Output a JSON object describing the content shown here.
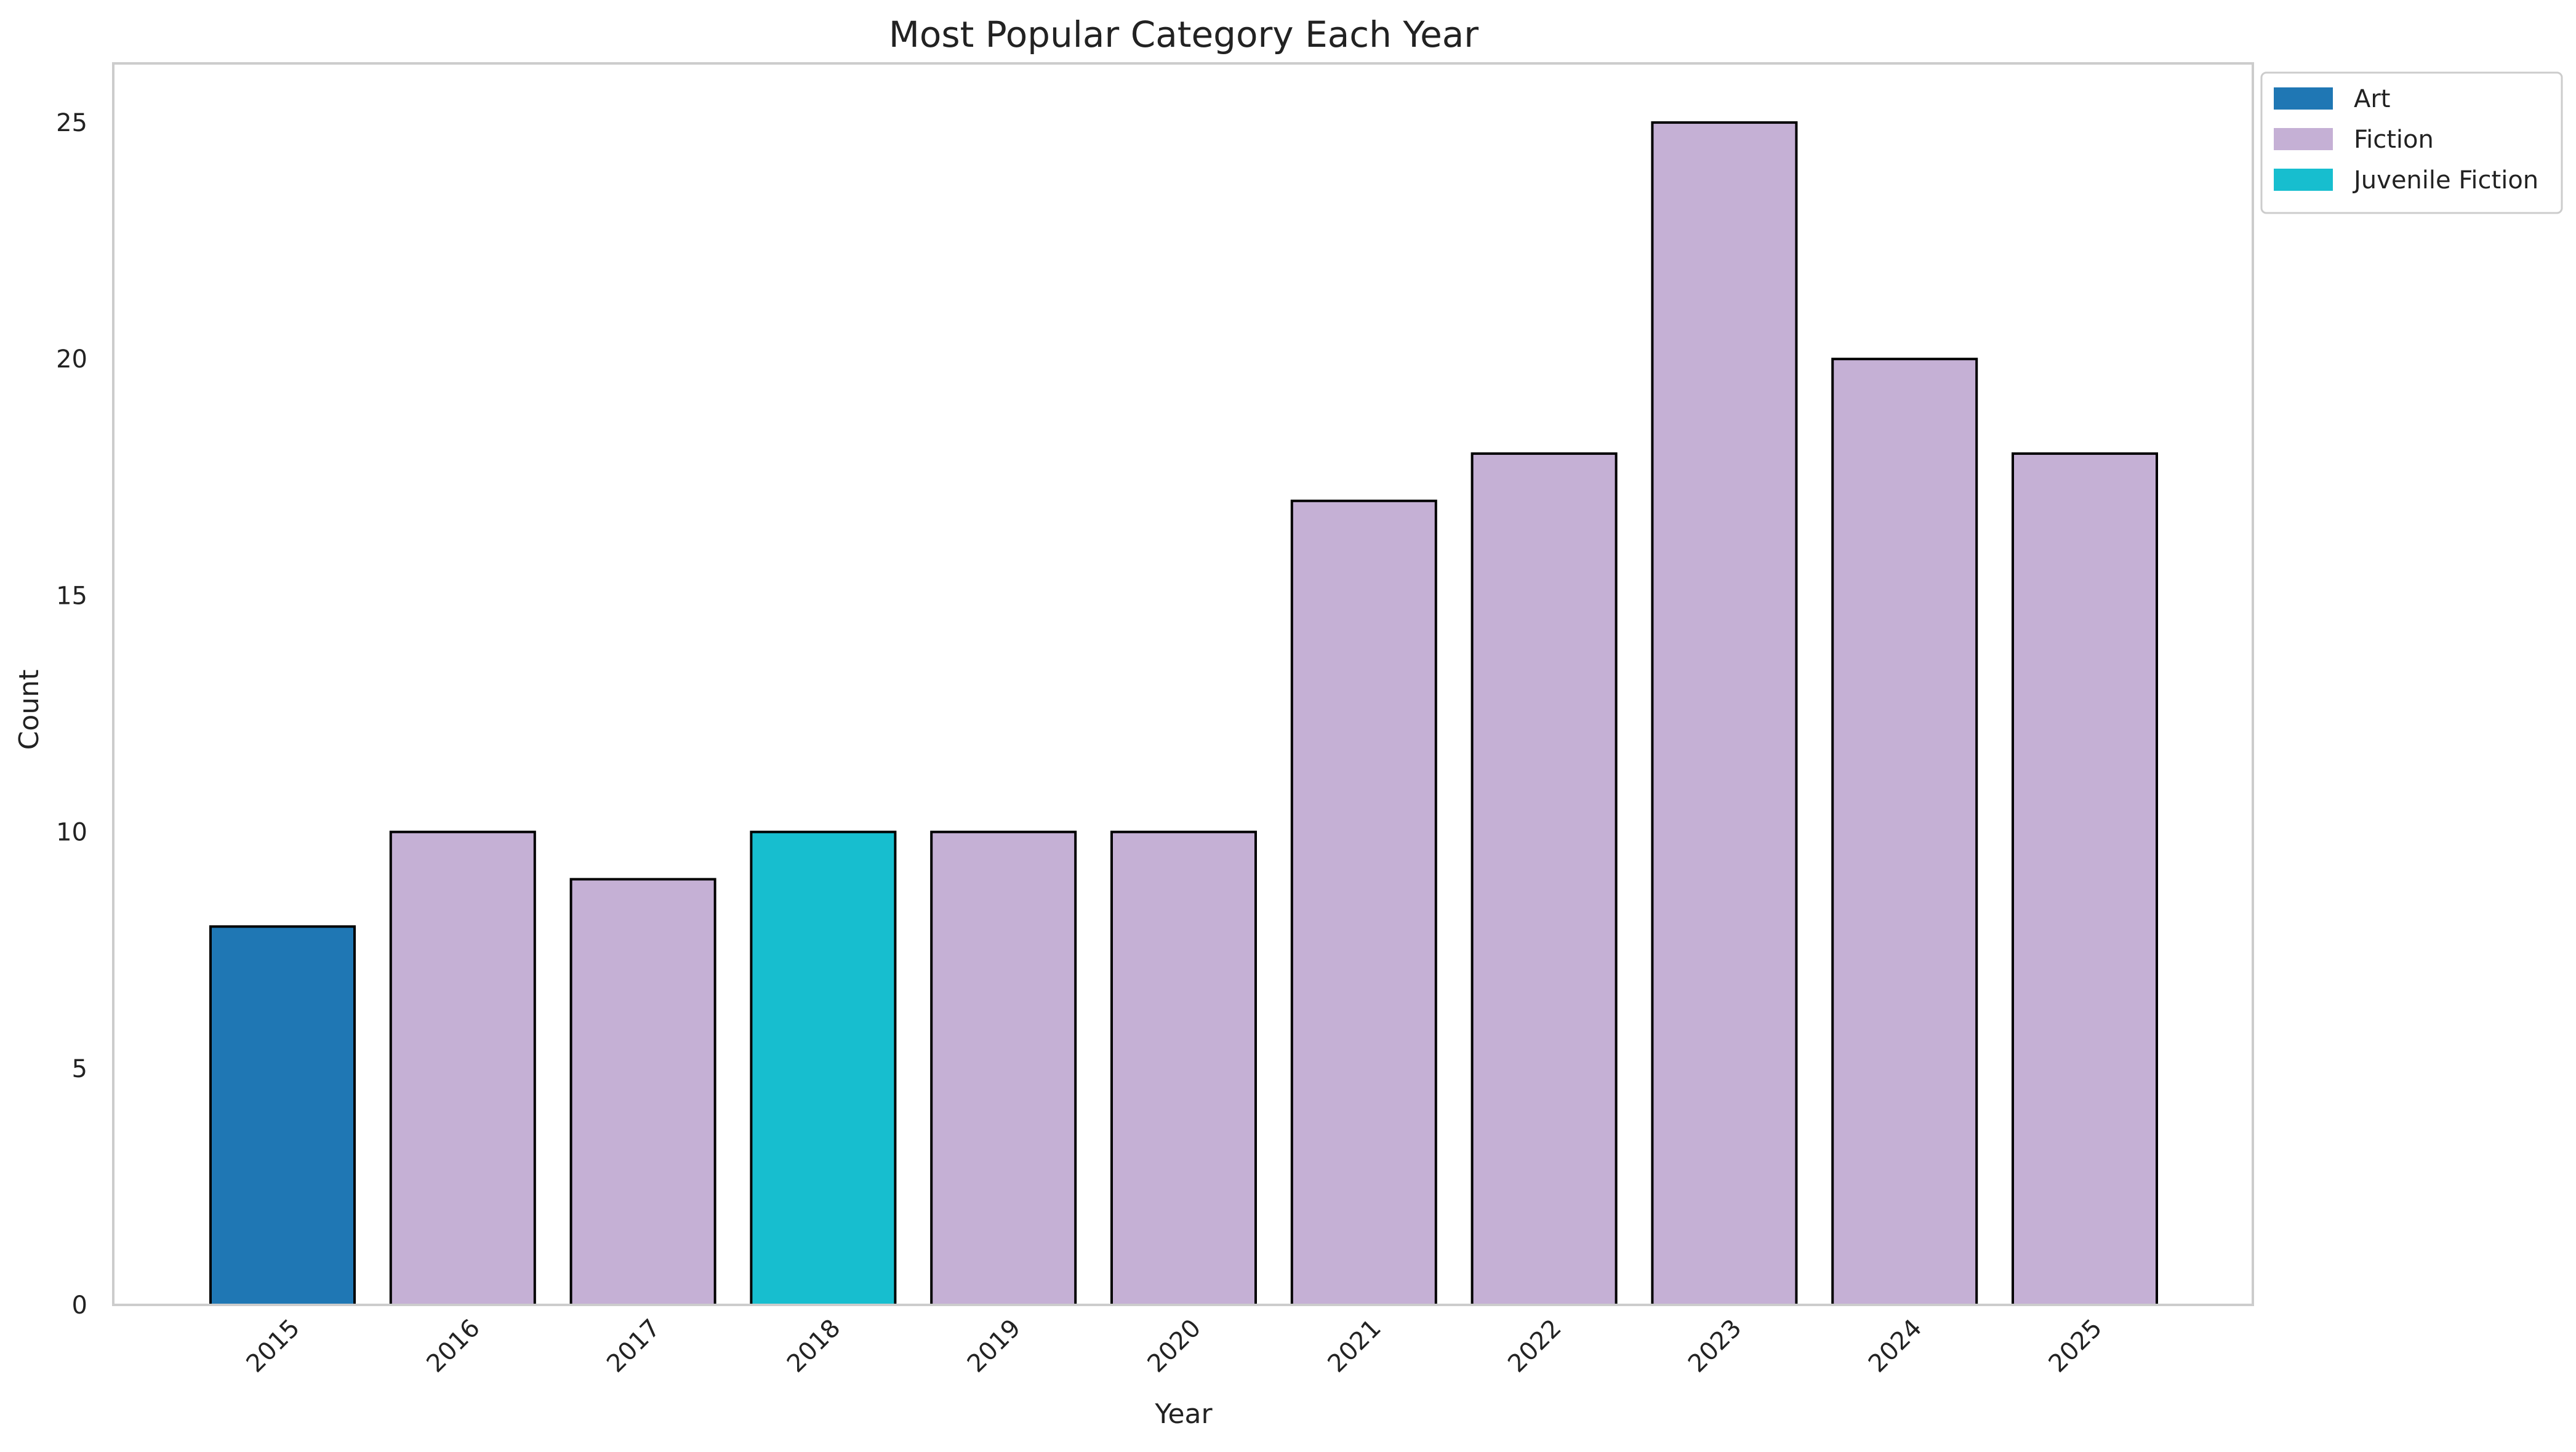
{
  "chart_data": {
    "type": "bar",
    "title": "Most Popular Category Each Year",
    "xlabel": "Year",
    "ylabel": "Count",
    "categories": [
      "2015",
      "2016",
      "2017",
      "2018",
      "2019",
      "2020",
      "2021",
      "2022",
      "2023",
      "2024",
      "2025"
    ],
    "values": [
      8,
      10,
      9,
      10,
      10,
      10,
      17,
      18,
      25,
      20,
      18
    ],
    "bar_category": [
      "Art",
      "Fiction",
      "Fiction",
      "Juvenile Fiction",
      "Fiction",
      "Fiction",
      "Fiction",
      "Fiction",
      "Fiction",
      "Fiction",
      "Fiction"
    ],
    "ylim": [
      0,
      26.25
    ],
    "yticks": [
      0,
      5,
      10,
      15,
      20,
      25
    ],
    "grid": false,
    "legend": {
      "placement": "upper-right-outside",
      "entries": [
        {
          "label": "Art",
          "color": "#1f77b4"
        },
        {
          "label": "Fiction",
          "color": "#c5b0d5"
        },
        {
          "label": "Juvenile Fiction",
          "color": "#17becf"
        }
      ]
    },
    "colors": {
      "Art": "#1f77b4",
      "Fiction": "#c5b0d5",
      "Juvenile Fiction": "#17becf",
      "bar_edge": "#000000",
      "frame": "#cccccc"
    }
  }
}
